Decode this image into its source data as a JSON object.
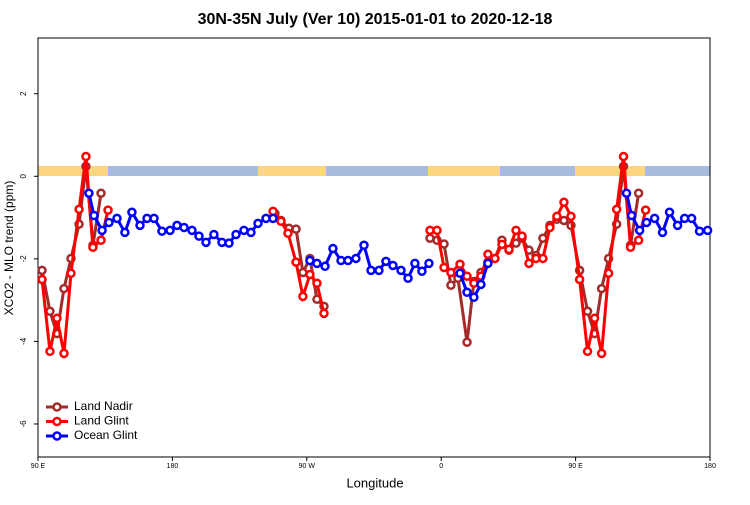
{
  "chart_data": {
    "type": "line",
    "title": "30N-35N July (Ver 10)   2015-01-01 to 2020-12-18",
    "x_label": "Longitude",
    "y_label": "XCO2 - MLO trend (ppm)",
    "xlim": [
      90,
      540
    ],
    "ylim": [
      -6.8,
      3.35
    ],
    "xticks": [
      {
        "value": 90,
        "label": "90 E"
      },
      180,
      {
        "value": 270,
        "label": "90 W"
      },
      {
        "value": 360,
        "label": "0"
      },
      {
        "value": 450,
        "label": "90 E"
      },
      {
        "value": 540,
        "label": "180"
      }
    ],
    "yticks": [
      -6,
      -4,
      -2,
      0,
      2
    ],
    "legend": "bottomleft",
    "series": [
      {
        "name": "Land Nadir",
        "color": "#a52a2a",
        "x": [
          92.7,
          98.0,
          102.7,
          107.4,
          112.1,
          117.5,
          122.1,
          126.8,
          132.2,
          null,
          248.7,
          252.7,
          258.1,
          262.8,
          267.4,
          272.1,
          276.8,
          281.5,
          null,
          352.5,
          357.2,
          361.9,
          366.5,
          371.2,
          377.3,
          381.9,
          386.6,
          391.3,
          396.0,
          400.7,
          405.4,
          410.1,
          414.1,
          418.8,
          423.5,
          428.1,
          432.8,
          437.5,
          442.2,
          446.9,
          452.7,
          458.0,
          462.7,
          467.4,
          472.1,
          477.5,
          482.1,
          486.8,
          492.2
        ],
        "values": [
          -2.28,
          -3.27,
          -3.81,
          -2.72,
          -1.99,
          -1.16,
          0.24,
          -1.67,
          -0.41,
          null,
          -0.9,
          -1.07,
          -1.26,
          -1.28,
          -2.33,
          -1.99,
          -2.98,
          -3.15,
          null,
          -1.5,
          -1.55,
          -1.64,
          -2.64,
          -2.47,
          -4.02,
          -2.55,
          -2.33,
          -2.08,
          -1.99,
          -1.55,
          -1.79,
          -1.62,
          -1.5,
          -1.79,
          -1.92,
          -1.5,
          -1.19,
          -1.04,
          -1.07,
          -1.19,
          -2.28,
          -3.27,
          -3.81,
          -2.72,
          -1.99,
          -1.16,
          0.24,
          -1.67,
          -0.41
        ]
      },
      {
        "name": "Land Glint",
        "color": "#ff0000",
        "x": [
          92.7,
          98.0,
          102.7,
          107.4,
          112.1,
          117.5,
          122.1,
          126.8,
          132.2,
          136.9,
          null,
          247.4,
          252.7,
          257.4,
          262.8,
          267.4,
          272.1,
          276.8,
          281.5,
          null,
          352.5,
          357.2,
          361.9,
          366.5,
          372.6,
          377.3,
          381.9,
          386.6,
          391.3,
          396.0,
          400.7,
          405.4,
          410.1,
          414.1,
          418.8,
          423.5,
          428.1,
          432.8,
          437.5,
          442.2,
          446.9,
          452.7,
          458.0,
          462.7,
          467.4,
          472.1,
          477.5,
          482.1,
          486.8,
          492.2,
          496.9
        ],
        "values": [
          -2.5,
          -4.24,
          -3.44,
          -4.29,
          -2.35,
          -0.8,
          0.48,
          -1.72,
          -1.55,
          -0.82,
          null,
          -0.85,
          -1.09,
          -1.38,
          -2.08,
          -2.91,
          -2.38,
          -2.59,
          -3.32,
          null,
          -1.31,
          -1.31,
          -2.21,
          -2.33,
          -2.13,
          -2.42,
          -2.59,
          -2.42,
          -1.89,
          -1.99,
          -1.65,
          -1.77,
          -1.31,
          -1.45,
          -2.11,
          -1.99,
          -1.99,
          -1.24,
          -0.97,
          -0.63,
          -0.97,
          -2.5,
          -4.24,
          -3.44,
          -4.29,
          -2.35,
          -0.8,
          0.48,
          -1.72,
          -1.55,
          -0.82
        ]
      },
      {
        "name": "Ocean Glint",
        "color": "#0000ff",
        "x": [
          124.1,
          127.5,
          132.9,
          137.5,
          142.9,
          148.2,
          152.9,
          158.3,
          163.0,
          167.7,
          173.0,
          178.4,
          183.1,
          187.8,
          193.1,
          197.8,
          202.5,
          207.8,
          213.2,
          217.9,
          222.6,
          227.9,
          232.6,
          237.3,
          242.7,
          247.4,
          null,
          272.1,
          276.8,
          282.2,
          287.5,
          292.9,
          297.6,
          302.9,
          308.3,
          313.0,
          318.3,
          323.0,
          327.7,
          333.1,
          337.8,
          342.4,
          347.1,
          351.8,
          null,
          372.6,
          377.3,
          381.9,
          386.6,
          391.3,
          null,
          484.1,
          487.5,
          492.9,
          497.5,
          502.9,
          508.2,
          512.9,
          518.3,
          523.0,
          527.7,
          533.0,
          538.4
        ],
        "values": [
          -0.41,
          -0.95,
          -1.31,
          -1.12,
          -1.02,
          -1.36,
          -0.87,
          -1.19,
          -1.02,
          -1.02,
          -1.33,
          -1.31,
          -1.19,
          -1.24,
          -1.31,
          -1.45,
          -1.6,
          -1.41,
          -1.6,
          -1.62,
          -1.41,
          -1.31,
          -1.36,
          -1.14,
          -1.02,
          -1.02,
          null,
          -2.04,
          -2.11,
          -2.18,
          -1.75,
          -2.04,
          -2.04,
          -1.99,
          -1.67,
          -2.28,
          -2.28,
          -2.06,
          -2.16,
          -2.28,
          -2.47,
          -2.11,
          -2.3,
          -2.11,
          null,
          -2.35,
          -2.81,
          -2.93,
          -2.62,
          -2.11,
          null,
          -0.41,
          -0.95,
          -1.31,
          -1.12,
          -1.02,
          -1.36,
          -0.87,
          -1.19,
          -1.02,
          -1.02,
          -1.33,
          -1.31
        ]
      }
    ]
  }
}
